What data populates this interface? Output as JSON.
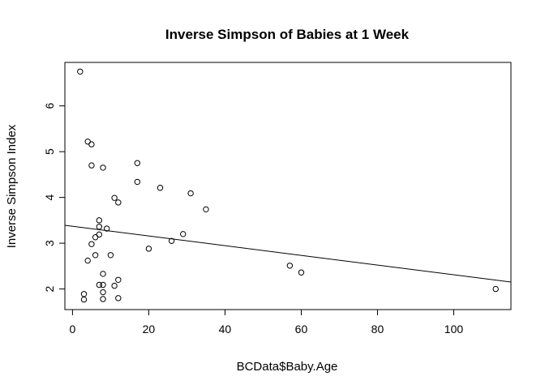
{
  "chart_data": {
    "type": "scatter",
    "title": "Inverse Simpson of Babies at 1 Week",
    "xlabel": "BCData$Baby.Age",
    "ylabel": "Inverse Simpson Index",
    "xlim": [
      -2,
      115
    ],
    "ylim": [
      1.55,
      6.95
    ],
    "xticks": [
      0,
      20,
      40,
      60,
      80,
      100
    ],
    "yticks": [
      2,
      3,
      4,
      5,
      6
    ],
    "grid": false,
    "legend": "none",
    "points": [
      {
        "x": 2,
        "y": 6.75
      },
      {
        "x": 4,
        "y": 5.22
      },
      {
        "x": 5,
        "y": 5.16
      },
      {
        "x": 5,
        "y": 4.7
      },
      {
        "x": 8,
        "y": 4.65
      },
      {
        "x": 17,
        "y": 4.75
      },
      {
        "x": 17,
        "y": 4.34
      },
      {
        "x": 23,
        "y": 4.21
      },
      {
        "x": 31,
        "y": 4.09
      },
      {
        "x": 11,
        "y": 3.99
      },
      {
        "x": 12,
        "y": 3.89
      },
      {
        "x": 35,
        "y": 3.74
      },
      {
        "x": 7,
        "y": 3.5
      },
      {
        "x": 7,
        "y": 3.36
      },
      {
        "x": 9,
        "y": 3.32
      },
      {
        "x": 7,
        "y": 3.19
      },
      {
        "x": 29,
        "y": 3.2
      },
      {
        "x": 6,
        "y": 3.13
      },
      {
        "x": 26,
        "y": 3.05
      },
      {
        "x": 5,
        "y": 2.98
      },
      {
        "x": 20,
        "y": 2.88
      },
      {
        "x": 6,
        "y": 2.74
      },
      {
        "x": 10,
        "y": 2.74
      },
      {
        "x": 4,
        "y": 2.62
      },
      {
        "x": 57,
        "y": 2.51
      },
      {
        "x": 60,
        "y": 2.36
      },
      {
        "x": 8,
        "y": 2.33
      },
      {
        "x": 12,
        "y": 2.2
      },
      {
        "x": 7,
        "y": 2.09
      },
      {
        "x": 8,
        "y": 2.09
      },
      {
        "x": 11,
        "y": 2.07
      },
      {
        "x": 111,
        "y": 2.0
      },
      {
        "x": 8,
        "y": 1.93
      },
      {
        "x": 3,
        "y": 1.89
      },
      {
        "x": 3,
        "y": 1.77
      },
      {
        "x": 8,
        "y": 1.78
      },
      {
        "x": 12,
        "y": 1.8
      }
    ],
    "regression_line": {
      "intercept": 3.37,
      "slope": -0.0106
    }
  }
}
